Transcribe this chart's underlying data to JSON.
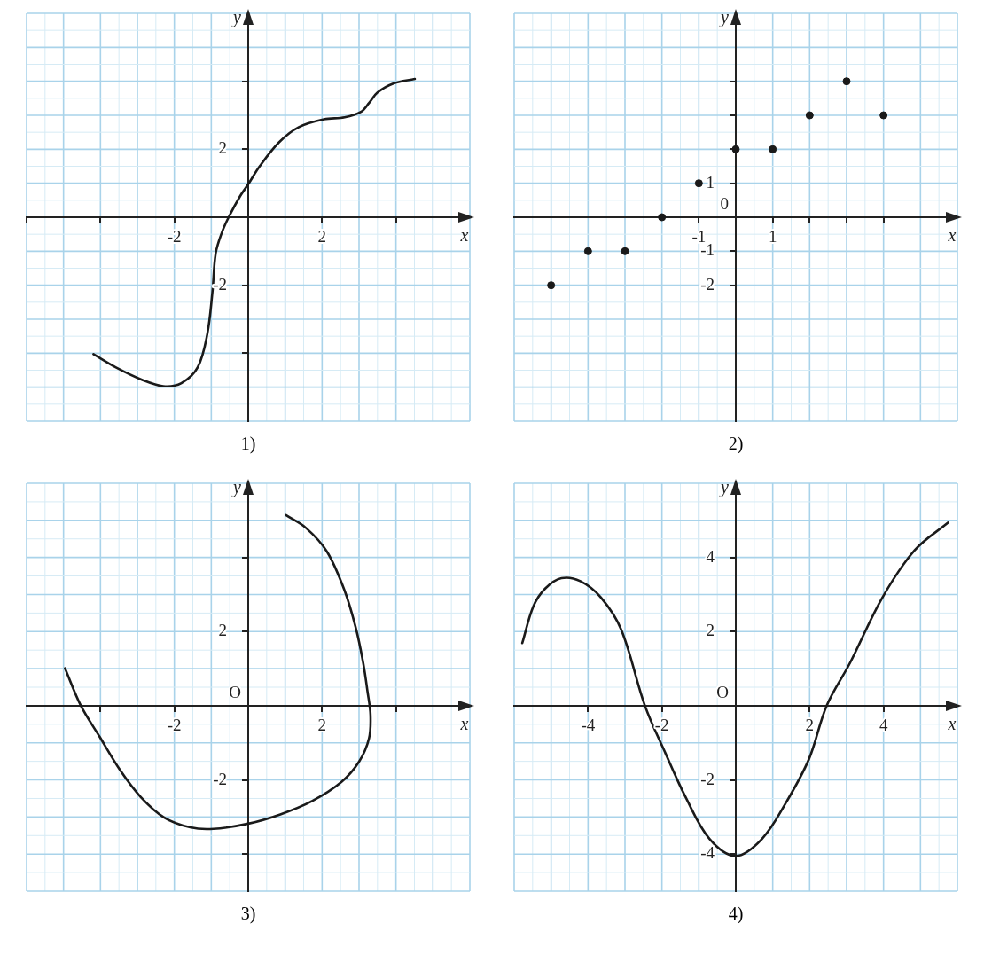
{
  "chart_data": [
    {
      "type": "line",
      "title": "1)",
      "xlabel": "x",
      "ylabel": "y",
      "xlim": [
        -6,
        6
      ],
      "ylim": [
        -6,
        6
      ],
      "grid": true,
      "legend": false,
      "marker": "none",
      "xticks": [
        {
          "value": -6,
          "label": null
        },
        {
          "value": -4,
          "label": null
        },
        -2,
        2,
        {
          "value": 4,
          "label": null
        }
      ],
      "yticks": [
        {
          "value": -4,
          "label": null
        },
        -2,
        2,
        {
          "value": 4,
          "label": null
        }
      ],
      "series": [
        {
          "color": "#1a1a1a",
          "x": [
            -4.19,
            -3.58,
            -2.88,
            -2.3,
            -1.81,
            -1.37,
            -1.11,
            -0.97,
            -0.88,
            -0.71,
            -0.53,
            -0.22,
            0,
            0.31,
            0.84,
            1.37,
            2.05,
            2.61,
            3.05,
            3.27,
            3.5,
            3.94,
            4.51
          ],
          "values": [
            -4.03,
            -4.42,
            -4.78,
            -4.97,
            -4.88,
            -4.42,
            -3.45,
            -2.21,
            -1.06,
            -0.44,
            0,
            0.62,
            0.97,
            1.5,
            2.21,
            2.65,
            2.88,
            2.94,
            3.1,
            3.36,
            3.67,
            3.94,
            4.07
          ]
        }
      ]
    },
    {
      "type": "scatter",
      "title": "2)",
      "xlabel": "x",
      "ylabel": "y",
      "xlim": [
        -6,
        6
      ],
      "ylim": [
        -6,
        6
      ],
      "grid": true,
      "legend": false,
      "marker": "circle",
      "xticks": [
        -1,
        1,
        {
          "value": 2,
          "label": null
        },
        {
          "value": 3,
          "label": null
        },
        {
          "value": 4,
          "label": null
        }
      ],
      "yticks": [
        -2,
        -1,
        1,
        {
          "value": 2,
          "label": null
        },
        {
          "value": 3,
          "label": null
        },
        {
          "value": 4,
          "label": null
        }
      ],
      "annotations": [
        "0"
      ],
      "series": [
        {
          "color": "#1a1a1a",
          "x": [
            -5,
            -4,
            -3,
            -2,
            -1,
            0,
            1,
            2,
            3,
            4
          ],
          "values": [
            -2,
            -1,
            -1,
            0,
            1,
            2,
            2,
            3,
            4,
            3
          ]
        }
      ]
    },
    {
      "type": "line",
      "title": "3)",
      "xlabel": "x",
      "ylabel": "y",
      "xlim": [
        -6,
        6
      ],
      "ylim": [
        -5,
        6
      ],
      "grid": true,
      "legend": false,
      "marker": "none",
      "xticks": [
        {
          "value": -4,
          "label": null
        },
        -2,
        2,
        {
          "value": 4,
          "label": null
        }
      ],
      "annotations": [
        "O"
      ],
      "yticks": [
        {
          "value": -4,
          "label": null
        },
        -2,
        2,
        {
          "value": 4,
          "label": null
        }
      ],
      "series": [
        {
          "color": "#1a1a1a",
          "x": [
            -4.96,
            -4.53,
            -4.02,
            -3.46,
            -2.91,
            -2.28,
            -1.57,
            -0.94,
            0,
            0.87,
            1.73,
            2.52,
            3.0,
            3.27,
            3.31,
            3.23,
            3.11,
            2.91,
            2.6,
            2.13,
            1.57,
            1.02
          ],
          "values": [
            1.01,
            0,
            -0.84,
            -1.75,
            -2.46,
            -3.01,
            -3.28,
            -3.32,
            -3.18,
            -2.93,
            -2.57,
            -2.06,
            -1.51,
            -0.88,
            -0.25,
            0.38,
            1.17,
            2.11,
            3.13,
            4.16,
            4.79,
            5.14
          ]
        }
      ]
    },
    {
      "type": "line",
      "title": "4)",
      "xlabel": "x",
      "ylabel": "y",
      "xlim": [
        -6,
        6
      ],
      "ylim": [
        -5,
        6
      ],
      "grid": true,
      "legend": false,
      "marker": "none",
      "xticks": [
        -4,
        -2,
        2,
        4
      ],
      "annotations": [
        "O"
      ],
      "yticks": [
        -4,
        -2,
        2,
        4
      ],
      "series": [
        {
          "color": "#1a1a1a",
          "x": [
            -5.78,
            -5.48,
            -5.16,
            -4.72,
            -4.21,
            -3.65,
            -3.1,
            -2.46,
            -1.9,
            -1.35,
            -0.71,
            0,
            0.71,
            1.35,
            1.98,
            2.46,
            3.1,
            3.97,
            4.84,
            5.75
          ],
          "values": [
            1.69,
            2.68,
            3.16,
            3.44,
            3.36,
            2.92,
            2.05,
            0,
            -1.29,
            -2.48,
            -3.59,
            -4.05,
            -3.59,
            -2.63,
            -1.44,
            0,
            1.17,
            2.92,
            4.19,
            4.94
          ]
        }
      ]
    }
  ]
}
